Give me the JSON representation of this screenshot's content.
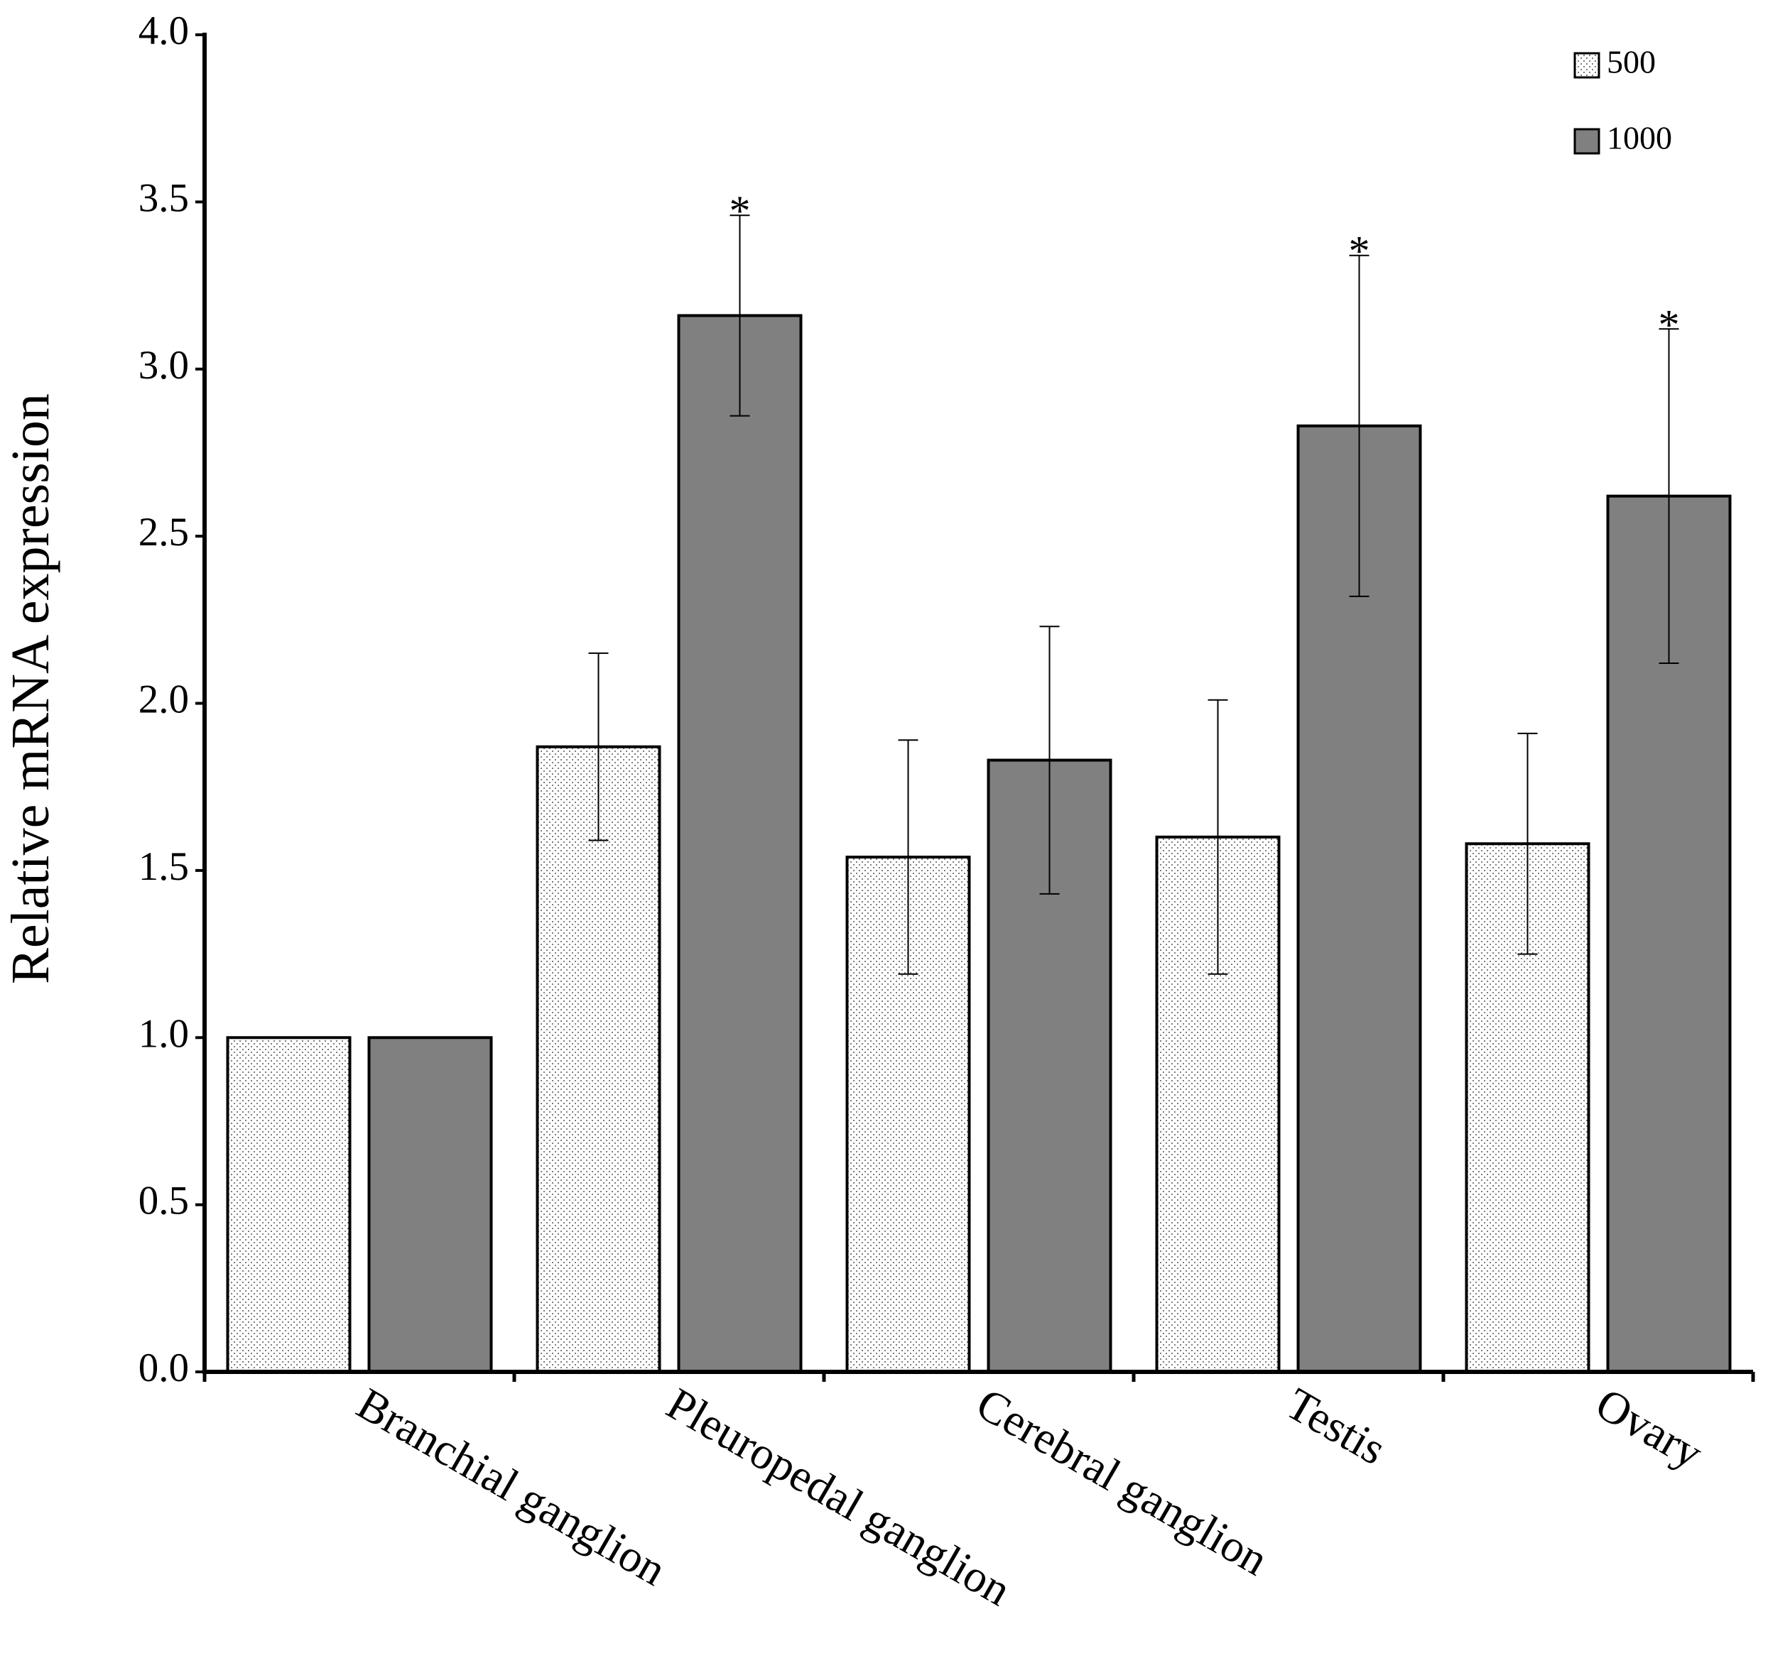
{
  "chart_data": {
    "type": "bar",
    "y_label": "Relative mRNA expression",
    "categories": [
      "Branchial ganglion",
      "Pleuropedal ganglion",
      "Cerebral ganglion",
      "Testis",
      "Ovary"
    ],
    "series": [
      {
        "name": "500",
        "color": "#ffffff",
        "pattern": "dots",
        "values": [
          1.0,
          1.87,
          1.54,
          1.6,
          1.58
        ],
        "errors": [
          null,
          0.28,
          0.35,
          0.41,
          0.33
        ]
      },
      {
        "name": "1000",
        "color": "#808080",
        "values": [
          1.0,
          3.16,
          1.83,
          2.83,
          2.62
        ],
        "errors": [
          null,
          0.3,
          0.4,
          0.51,
          0.5
        ],
        "significance": [
          null,
          "*",
          null,
          "*",
          "*"
        ]
      }
    ],
    "ylim": [
      0,
      4
    ],
    "yticks": [
      {
        "value": 0,
        "label": "0.0"
      },
      {
        "value": 0.5,
        "label": "0.5"
      },
      {
        "value": 1,
        "label": "1.0"
      },
      {
        "value": 1.5,
        "label": "1.5"
      },
      {
        "value": 2,
        "label": "2.0"
      },
      {
        "value": 2.5,
        "label": "2.5"
      },
      {
        "value": 3,
        "label": "3.0"
      },
      {
        "value": 3.5,
        "label": "3.5"
      },
      {
        "value": 4,
        "label": "4.0"
      }
    ],
    "grid": false,
    "legend": "top-right"
  }
}
